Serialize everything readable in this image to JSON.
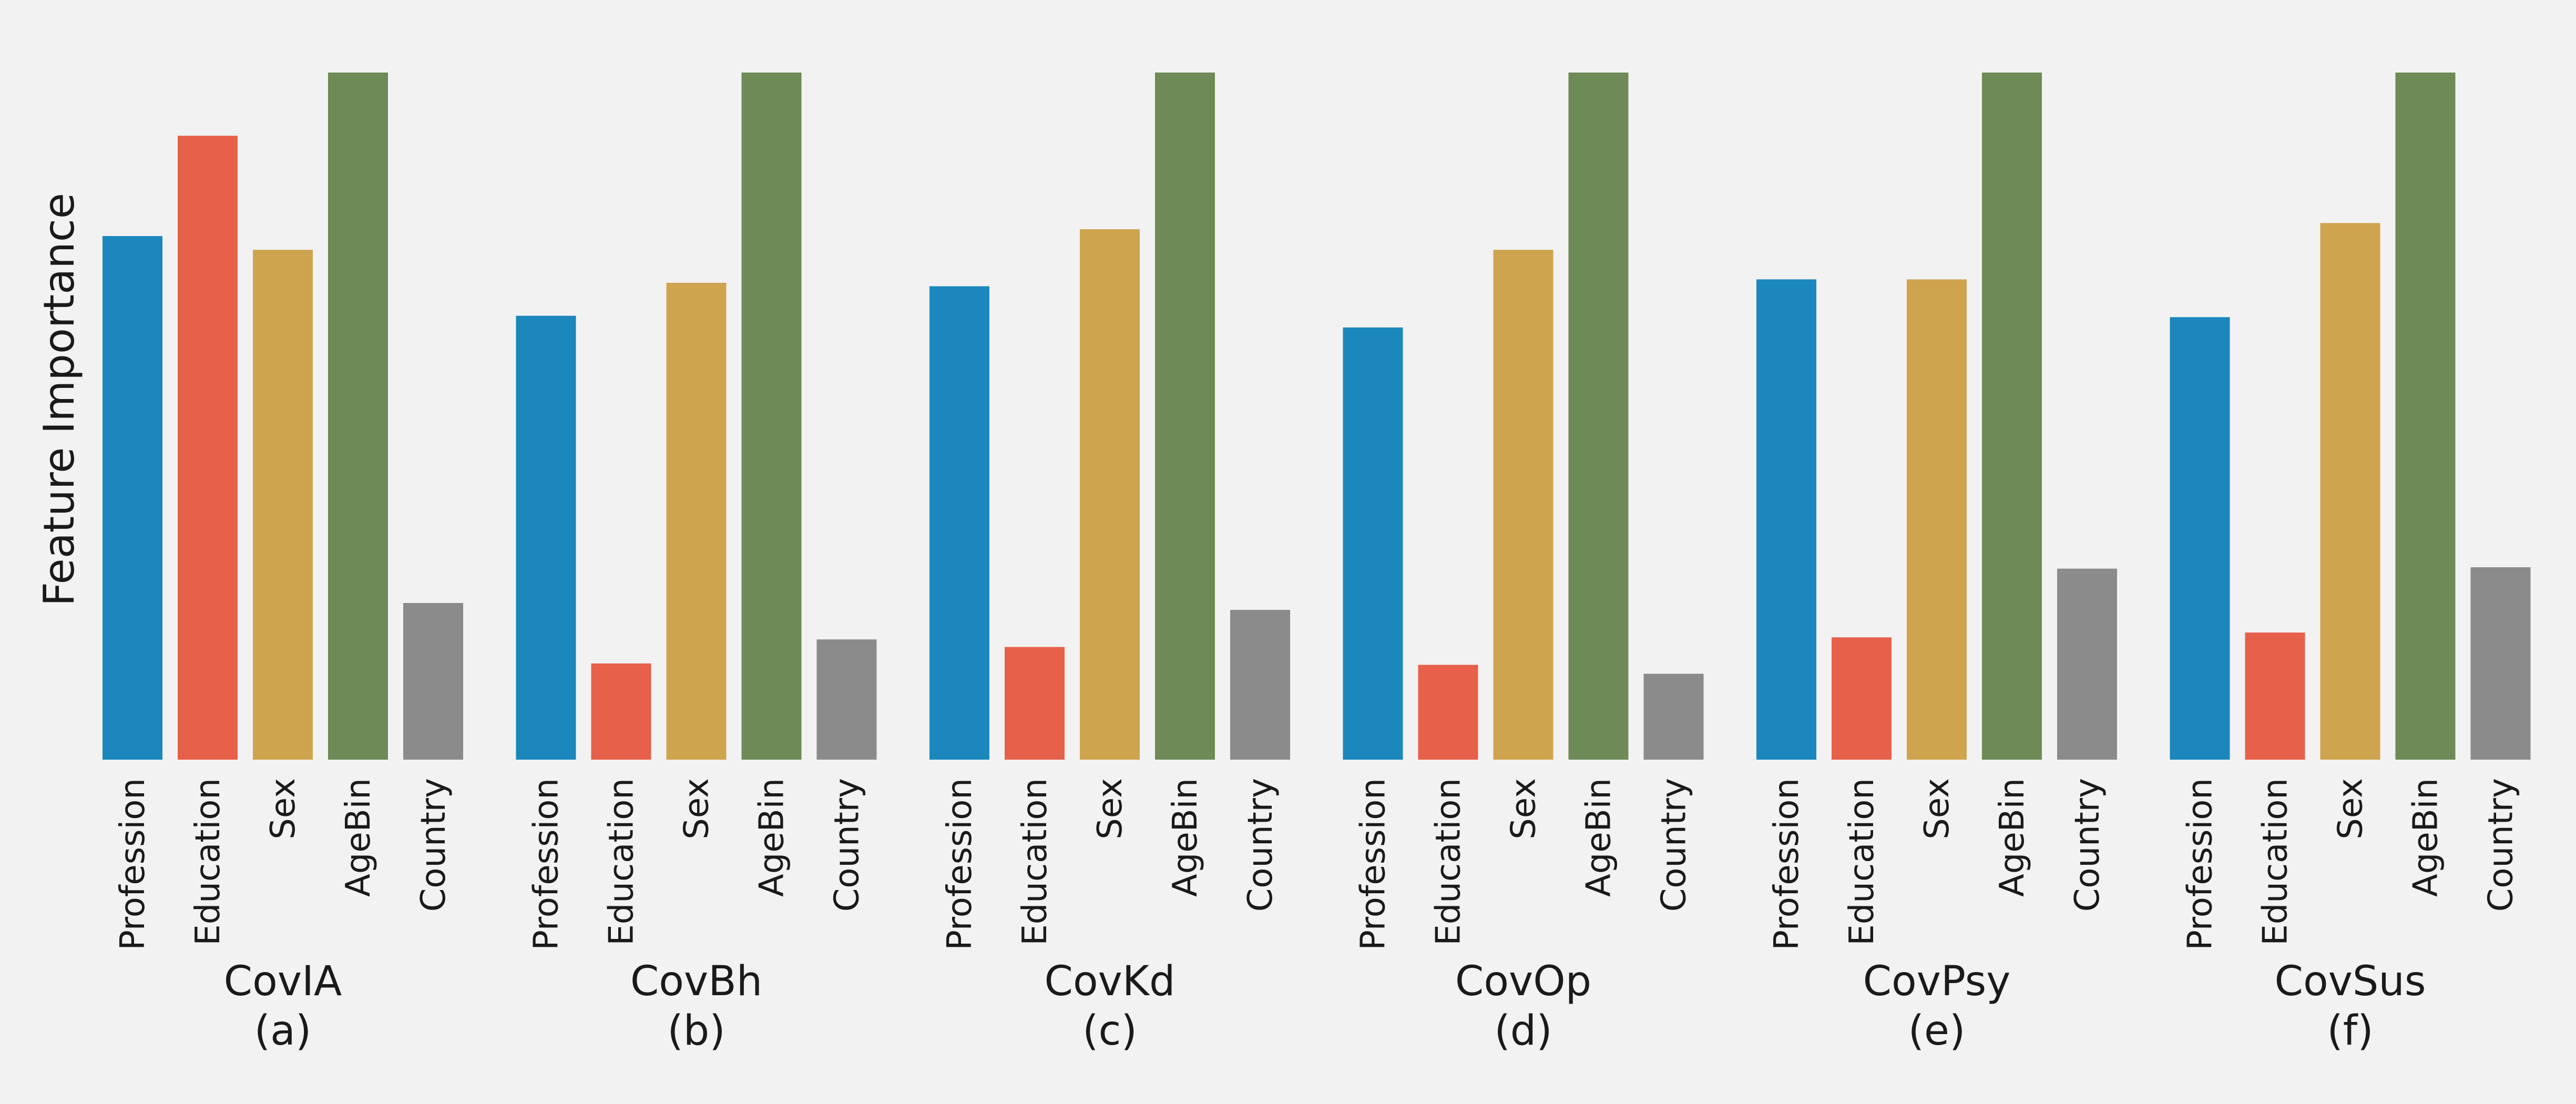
{
  "chart_data": {
    "type": "bar",
    "ylabel": "Feature Importance",
    "ylim": [
      0,
      1
    ],
    "grid": false,
    "categories": [
      "Profession",
      "Education",
      "Sex",
      "AgeBin",
      "Country"
    ],
    "colors": [
      "#1b87bc",
      "#e6604a",
      "#cfa44f",
      "#6d8a57",
      "#8b8b8b"
    ],
    "panels": [
      {
        "name": "CovIA",
        "tag": "(a)",
        "values": [
          0.762,
          0.908,
          0.742,
          1.0,
          0.228
        ]
      },
      {
        "name": "CovBh",
        "tag": "(b)",
        "values": [
          0.646,
          0.14,
          0.694,
          1.0,
          0.175
        ]
      },
      {
        "name": "CovKd",
        "tag": "(c)",
        "values": [
          0.689,
          0.164,
          0.772,
          1.0,
          0.218
        ]
      },
      {
        "name": "CovOp",
        "tag": "(d)",
        "values": [
          0.629,
          0.138,
          0.742,
          1.0,
          0.125
        ]
      },
      {
        "name": "CovPsy",
        "tag": "(e)",
        "values": [
          0.699,
          0.178,
          0.699,
          1.0,
          0.278
        ]
      },
      {
        "name": "CovSus",
        "tag": "(f)",
        "values": [
          0.644,
          0.185,
          0.781,
          1.0,
          0.28
        ]
      }
    ]
  }
}
